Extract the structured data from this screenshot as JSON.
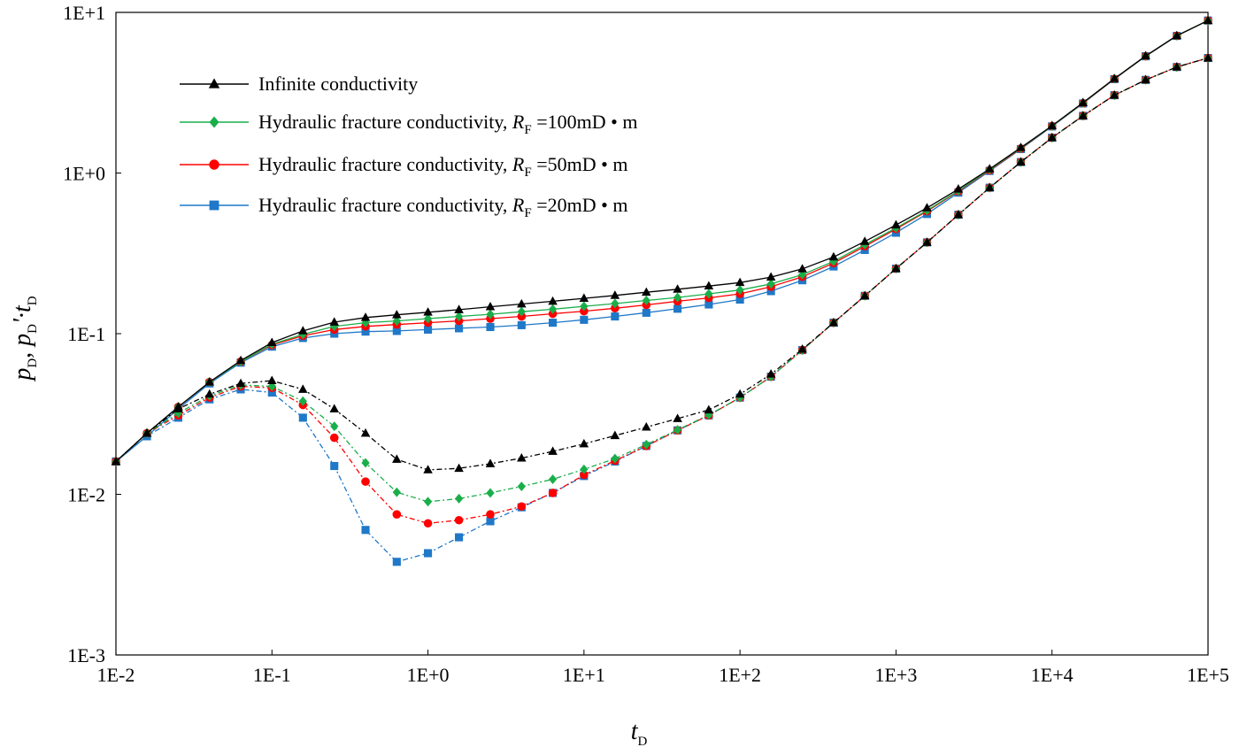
{
  "chart_data": {
    "type": "line",
    "x_scale": "log",
    "y_scale": "log",
    "xlim": [
      0.01,
      100000
    ],
    "ylim": [
      0.001,
      10
    ],
    "x_ticks": [
      "1E-2",
      "1E-1",
      "1E+0",
      "1E+1",
      "1E+2",
      "1E+3",
      "1E+4",
      "1E+5"
    ],
    "y_ticks": [
      "1E-3",
      "1E-2",
      "1E-1",
      "1E+0",
      "1E+1"
    ],
    "xlabel": {
      "main": "t",
      "sub": "D"
    },
    "ylabel": {
      "p": "p",
      "sub": "D",
      "deriv": "'·t"
    },
    "grid": false,
    "legend_position": "top-left",
    "x": [
      0.01,
      0.0158,
      0.0251,
      0.0398,
      0.0631,
      0.1,
      0.158,
      0.251,
      0.398,
      0.631,
      1,
      1.58,
      2.51,
      3.98,
      6.31,
      10,
      15.8,
      25.1,
      39.8,
      63.1,
      100,
      158,
      251,
      398,
      631,
      1000,
      1580,
      2510,
      3980,
      6310,
      10000,
      15800,
      25100,
      39800,
      63100,
      100000
    ],
    "series": [
      {
        "name": "Infinite conductivity",
        "label_main": "Infinite conductivity",
        "label_rf": "",
        "label_unit": "",
        "color": "#000000",
        "marker": "triangle",
        "pressure": [
          0.016,
          0.024,
          0.035,
          0.05,
          0.068,
          0.088,
          0.104,
          0.118,
          0.126,
          0.131,
          0.136,
          0.141,
          0.147,
          0.153,
          0.159,
          0.166,
          0.173,
          0.181,
          0.189,
          0.198,
          0.208,
          0.225,
          0.253,
          0.3,
          0.375,
          0.475,
          0.607,
          0.794,
          1.06,
          1.44,
          1.97,
          2.74,
          3.87,
          5.36,
          7.16,
          8.9
        ],
        "derivative": [
          0.016,
          0.024,
          0.034,
          0.042,
          0.049,
          0.051,
          0.045,
          0.034,
          0.024,
          0.0165,
          0.0142,
          0.0145,
          0.0155,
          0.0168,
          0.0185,
          0.0206,
          0.0232,
          0.0262,
          0.0296,
          0.0335,
          0.042,
          0.056,
          0.08,
          0.117,
          0.172,
          0.254,
          0.37,
          0.55,
          0.81,
          1.17,
          1.66,
          2.27,
          3.05,
          3.8,
          4.57,
          5.2
        ]
      },
      {
        "name": "Hydraulic fracture conductivity, RF=100mD • m",
        "label_main": "Hydraulic fracture conductivity, ",
        "label_rf": "=100mD",
        "label_unit": "m",
        "color": "#1aae4a",
        "marker": "diamond",
        "pressure": [
          0.016,
          0.024,
          0.035,
          0.05,
          0.067,
          0.086,
          0.099,
          0.111,
          0.117,
          0.12,
          0.124,
          0.128,
          0.132,
          0.137,
          0.142,
          0.148,
          0.154,
          0.161,
          0.168,
          0.177,
          0.187,
          0.204,
          0.233,
          0.282,
          0.358,
          0.455,
          0.585,
          0.776,
          1.05,
          1.43,
          1.96,
          2.73,
          3.86,
          5.35,
          7.15,
          8.9
        ],
        "derivative": [
          0.016,
          0.024,
          0.032,
          0.041,
          0.048,
          0.047,
          0.038,
          0.0265,
          0.0157,
          0.0103,
          0.009,
          0.0094,
          0.0102,
          0.0112,
          0.0124,
          0.0143,
          0.0167,
          0.0204,
          0.0252,
          0.0312,
          0.04,
          0.054,
          0.079,
          0.117,
          0.172,
          0.254,
          0.37,
          0.55,
          0.81,
          1.17,
          1.66,
          2.27,
          3.05,
          3.8,
          4.57,
          5.2
        ]
      },
      {
        "name": "Hydraulic fracture conductivity, RF=50mD • m",
        "label_main": "Hydraulic fracture conductivity, ",
        "label_rf": "=50mD",
        "label_unit": "m",
        "color": "#ff0000",
        "marker": "circle",
        "pressure": [
          0.016,
          0.024,
          0.035,
          0.05,
          0.067,
          0.085,
          0.097,
          0.106,
          0.111,
          0.114,
          0.117,
          0.12,
          0.124,
          0.128,
          0.133,
          0.138,
          0.144,
          0.151,
          0.159,
          0.167,
          0.177,
          0.196,
          0.226,
          0.275,
          0.35,
          0.448,
          0.578,
          0.77,
          1.04,
          1.42,
          1.96,
          2.72,
          3.85,
          5.34,
          7.15,
          8.9
        ],
        "derivative": [
          0.016,
          0.024,
          0.031,
          0.04,
          0.047,
          0.046,
          0.036,
          0.0225,
          0.012,
          0.0075,
          0.0066,
          0.0069,
          0.0075,
          0.0084,
          0.0102,
          0.0132,
          0.0162,
          0.02,
          0.025,
          0.031,
          0.04,
          0.054,
          0.079,
          0.117,
          0.172,
          0.254,
          0.37,
          0.55,
          0.81,
          1.17,
          1.66,
          2.27,
          3.05,
          3.8,
          4.57,
          5.2
        ]
      },
      {
        "name": "Hydraulic fracture conductivity, RF=20mD • m",
        "label_main": "Hydraulic fracture conductivity, ",
        "label_rf": "=20mD",
        "label_unit": "m",
        "color": "#1f78c8",
        "marker": "square",
        "pressure": [
          0.016,
          0.023,
          0.034,
          0.049,
          0.066,
          0.083,
          0.094,
          0.1,
          0.103,
          0.104,
          0.106,
          0.108,
          0.11,
          0.113,
          0.117,
          0.122,
          0.128,
          0.135,
          0.143,
          0.152,
          0.163,
          0.184,
          0.215,
          0.262,
          0.332,
          0.425,
          0.556,
          0.755,
          1.03,
          1.41,
          1.95,
          2.71,
          3.84,
          5.33,
          7.14,
          8.9
        ],
        "derivative": [
          0.016,
          0.023,
          0.03,
          0.039,
          0.045,
          0.043,
          0.03,
          0.015,
          0.006,
          0.0038,
          0.0043,
          0.0054,
          0.0068,
          0.0083,
          0.0102,
          0.013,
          0.016,
          0.02,
          0.025,
          0.031,
          0.04,
          0.054,
          0.079,
          0.117,
          0.172,
          0.254,
          0.37,
          0.55,
          0.81,
          1.17,
          1.66,
          2.27,
          3.05,
          3.8,
          4.57,
          5.2
        ]
      }
    ]
  }
}
